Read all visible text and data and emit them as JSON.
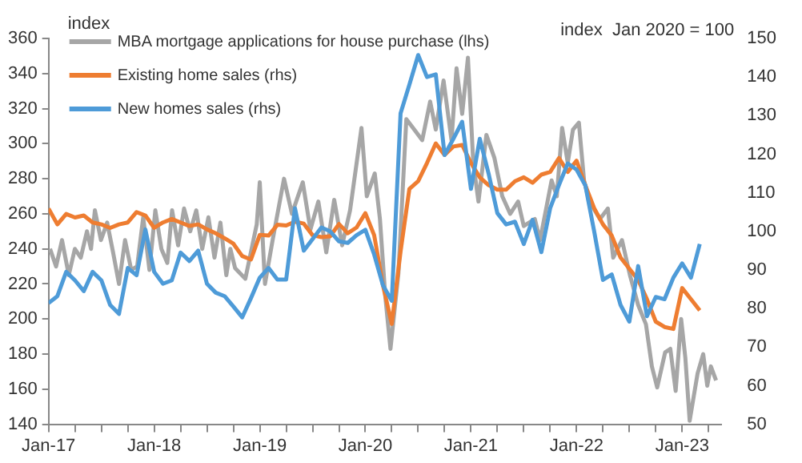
{
  "chart_data": {
    "type": "line",
    "ylabel": "index",
    "y2label": "index  Jan 2020 = 100",
    "x": [
      "2017-01",
      "2017-02",
      "2017-03",
      "2017-04",
      "2017-05",
      "2017-06",
      "2017-07",
      "2017-08",
      "2017-09",
      "2017-10",
      "2017-11",
      "2017-12",
      "2018-01",
      "2018-02",
      "2018-03",
      "2018-04",
      "2018-05",
      "2018-06",
      "2018-07",
      "2018-08",
      "2018-09",
      "2018-10",
      "2018-11",
      "2018-12",
      "2019-01",
      "2019-02",
      "2019-03",
      "2019-04",
      "2019-05",
      "2019-06",
      "2019-07",
      "2019-08",
      "2019-09",
      "2019-10",
      "2019-11",
      "2019-12",
      "2020-01",
      "2020-02",
      "2020-03",
      "2020-04",
      "2020-05",
      "2020-06",
      "2020-07",
      "2020-08",
      "2020-09",
      "2020-10",
      "2020-11",
      "2020-12",
      "2021-01",
      "2021-02",
      "2021-03",
      "2021-04",
      "2021-05",
      "2021-06",
      "2021-07",
      "2021-08",
      "2021-09",
      "2021-10",
      "2021-11",
      "2021-12",
      "2022-01",
      "2022-02",
      "2022-03",
      "2022-04",
      "2022-05",
      "2022-06",
      "2022-07",
      "2022-08",
      "2022-09",
      "2022-10",
      "2022-11",
      "2022-12",
      "2023-01",
      "2023-02",
      "2023-03"
    ],
    "series": [
      {
        "name": "MBA mortgage applications for house purchase (lhs)",
        "color": "#a6a6a6",
        "axis": "y",
        "x": [
          "2017-01-06",
          "2017-01-27",
          "2017-02-17",
          "2017-03-10",
          "2017-03-31",
          "2017-04-21",
          "2017-05-12",
          "2017-05-26",
          "2017-06-09",
          "2017-06-30",
          "2017-07-21",
          "2017-08-11",
          "2017-09-01",
          "2017-09-22",
          "2017-10-13",
          "2017-11-03",
          "2017-11-24",
          "2017-12-15",
          "2018-01-05",
          "2018-01-26",
          "2018-02-16",
          "2018-03-02",
          "2018-03-23",
          "2018-04-13",
          "2018-05-04",
          "2018-05-25",
          "2018-06-15",
          "2018-07-06",
          "2018-07-27",
          "2018-08-17",
          "2018-09-07",
          "2018-09-21",
          "2018-10-07",
          "2018-11-12",
          "2018-12-21",
          "2019-01-01",
          "2019-01-19",
          "2019-02-15",
          "2019-03-24",
          "2019-04-21",
          "2019-05-28",
          "2019-06-24",
          "2019-07-21",
          "2019-08-18",
          "2019-09-15",
          "2019-10-12",
          "2019-11-09",
          "2019-12-18",
          "2020-01-06",
          "2020-02-03",
          "2020-02-21",
          "2020-03-09",
          "2020-03-27",
          "2020-04-24",
          "2020-05-21",
          "2020-06-18",
          "2020-07-15",
          "2020-08-12",
          "2020-09-01",
          "2020-09-28",
          "2020-10-25",
          "2020-11-12",
          "2020-12-01",
          "2020-12-21",
          "2021-01-09",
          "2021-01-27",
          "2021-02-24",
          "2021-03-21",
          "2021-04-18",
          "2021-05-15",
          "2021-06-12",
          "2021-07-01",
          "2021-08-09",
          "2021-08-27",
          "2021-10-06",
          "2021-10-24",
          "2021-11-12",
          "2021-12-01",
          "2021-12-19",
          "2022-01-09",
          "2022-01-27",
          "2022-02-15",
          "2022-03-21",
          "2022-04-18",
          "2022-05-06",
          "2022-06-06",
          "2022-07-03",
          "2022-08-01",
          "2022-08-28",
          "2022-09-18",
          "2022-10-06",
          "2022-11-03",
          "2022-11-21",
          "2022-12-09",
          "2022-12-28",
          "2023-01-12",
          "2023-01-27",
          "2023-02-24",
          "2023-03-13",
          "2023-03-27",
          "2023-04-09",
          "2023-04-27"
        ],
        "values": [
          240,
          230,
          245,
          225,
          240,
          235,
          250,
          240,
          262,
          245,
          255,
          238,
          220,
          245,
          228,
          230,
          258,
          228,
          262,
          240,
          232,
          262,
          242,
          263,
          250,
          262,
          240,
          258,
          235,
          255,
          225,
          240,
          229,
          223,
          254,
          278,
          220,
          245,
          280,
          260,
          278,
          251,
          267,
          238,
          268,
          242,
          262,
          309,
          270,
          283,
          257,
          213,
          183,
          226,
          314,
          308,
          302,
          324,
          308,
          336,
          302,
          343,
          317,
          349,
          289,
          267,
          305,
          292,
          270,
          260,
          267,
          253,
          257,
          245,
          279,
          270,
          309,
          289,
          308,
          312,
          279,
          267,
          257,
          263,
          235,
          245,
          225,
          208,
          197,
          173,
          161,
          181,
          183,
          159,
          200,
          178,
          142,
          169,
          180,
          162,
          173,
          165
        ]
      },
      {
        "name": "Existing home sales (rhs)",
        "color": "#ee7d31",
        "axis": "y2",
        "values": [
          105.9,
          101.8,
          104.5,
          103.6,
          104.1,
          102.3,
          101.8,
          100.9,
          101.8,
          102.3,
          105,
          104.1,
          100.9,
          102.3,
          103.2,
          102.3,
          101.4,
          101.8,
          100.5,
          99.5,
          98.2,
          96.8,
          93.6,
          92.7,
          99.1,
          98.9,
          101.7,
          101.5,
          102.5,
          102,
          99,
          98.5,
          98.7,
          101.9,
          99.5,
          101,
          104.7,
          99,
          86,
          76,
          94.8,
          111,
          113,
          117.7,
          122.8,
          119.8,
          122,
          122.4,
          117.7,
          114,
          112,
          110.8,
          110.8,
          113,
          114,
          112.6,
          114.7,
          115.4,
          119,
          115.4,
          118.3,
          111.9,
          106,
          101.8,
          98.9,
          93.2,
          90.3,
          87.4,
          82.4,
          76.6,
          75.2,
          74.7,
          85.3,
          82.4,
          79.5
        ]
      },
      {
        "name": "New homes sales (rhs)",
        "color": "#4e9bd8",
        "axis": "y2",
        "values": [
          81.4,
          83.2,
          89.5,
          87.3,
          84.5,
          89.5,
          87.3,
          80.9,
          78.6,
          90.5,
          88.6,
          100.5,
          89.5,
          86.4,
          87.3,
          94.5,
          92.3,
          95,
          86.4,
          84.1,
          83.2,
          80.5,
          77.7,
          82.7,
          88,
          90.5,
          87.5,
          87.5,
          106,
          95,
          98,
          101,
          100,
          97.4,
          97,
          99,
          100.4,
          94,
          86,
          82,
          130.6,
          138,
          145.7,
          140,
          140.7,
          119.8,
          124,
          128.4,
          111,
          124,
          115,
          104.7,
          101.8,
          102.5,
          96.7,
          103,
          94.6,
          106,
          112,
          117.6,
          116,
          111.9,
          100,
          87.4,
          88.8,
          80.9,
          76.6,
          91,
          78,
          83,
          82.4,
          88,
          91.7,
          88,
          96.7
        ]
      }
    ],
    "xlim": [
      "2017-01-01",
      "2023-05-15"
    ],
    "xticks": [
      {
        "value": "2017-01",
        "label": "Jan-17"
      },
      {
        "value": "2017-04",
        "label": null
      },
      {
        "value": "2017-07",
        "label": null
      },
      {
        "value": "2017-10",
        "label": null
      },
      {
        "value": "2018-01",
        "label": "Jan-18"
      },
      {
        "value": "2018-04",
        "label": null
      },
      {
        "value": "2018-07",
        "label": null
      },
      {
        "value": "2018-10",
        "label": null
      },
      {
        "value": "2019-01",
        "label": "Jan-19"
      },
      {
        "value": "2019-04",
        "label": null
      },
      {
        "value": "2019-07",
        "label": null
      },
      {
        "value": "2019-10",
        "label": null
      },
      {
        "value": "2020-01",
        "label": "Jan-20"
      },
      {
        "value": "2020-04",
        "label": null
      },
      {
        "value": "2020-07",
        "label": null
      },
      {
        "value": "2020-10",
        "label": null
      },
      {
        "value": "2021-01",
        "label": "Jan-21"
      },
      {
        "value": "2021-04",
        "label": null
      },
      {
        "value": "2021-07",
        "label": null
      },
      {
        "value": "2021-10",
        "label": null
      },
      {
        "value": "2022-01",
        "label": "Jan-22"
      },
      {
        "value": "2022-04",
        "label": null
      },
      {
        "value": "2022-07",
        "label": null
      },
      {
        "value": "2022-10",
        "label": null
      },
      {
        "value": "2023-01",
        "label": "Jan-23"
      },
      {
        "value": "2023-04",
        "label": null
      }
    ],
    "ylim": [
      140,
      360
    ],
    "yticks": [
      140,
      160,
      180,
      200,
      220,
      240,
      260,
      280,
      300,
      320,
      340,
      360
    ],
    "y2lim": [
      50,
      150
    ],
    "y2ticks": [
      50,
      60,
      70,
      80,
      90,
      100,
      110,
      120,
      130,
      140,
      150
    ],
    "grid": false,
    "legend": "top left"
  }
}
